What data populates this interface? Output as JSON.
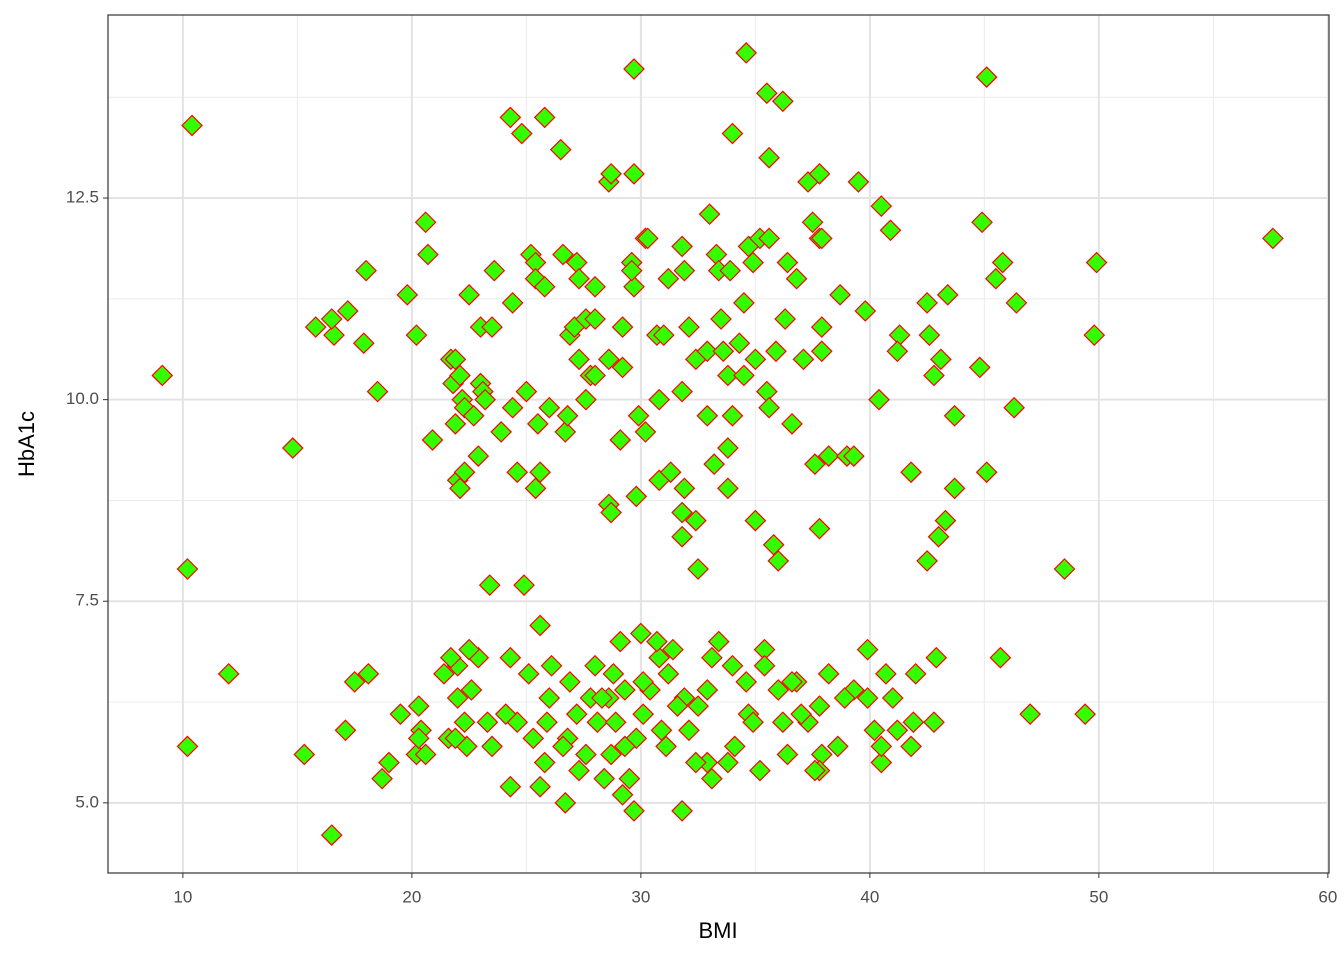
{
  "chart_data": {
    "type": "scatter",
    "xlabel": "BMI",
    "ylabel": "HbA1c",
    "xlim": [
      6.73,
      60.05
    ],
    "ylim": [
      4.13,
      14.77
    ],
    "xticks": [
      10,
      20,
      30,
      40,
      50,
      60
    ],
    "yticks": [
      {
        "value": 5,
        "label": "5.0"
      },
      7.5,
      {
        "value": 10,
        "label": "10.0"
      },
      12.5
    ],
    "grid": true,
    "color": "#33ff00",
    "edge_color": "#ff0000",
    "x": [
      10.4,
      9.1,
      10.2,
      10.2,
      12.0,
      14.8,
      15.3,
      16.5,
      15.8,
      16.6,
      16.5,
      17.2,
      17.9,
      18.0,
      18.5,
      17.5,
      18.1,
      17.1,
      18.7,
      19.0,
      19.5,
      19.8,
      20.2,
      20.6,
      20.7,
      20.9,
      20.3,
      20.2,
      20.6,
      20.4,
      20.3,
      21.7,
      21.9,
      21.8,
      22.1,
      21.9,
      22.2,
      22.3,
      22.0,
      22.1,
      22.3,
      22.5,
      22.7,
      23.0,
      23.1,
      23.2,
      22.9,
      23.0,
      23.5,
      23.6,
      23.4,
      23.9,
      24.3,
      24.8,
      24.4,
      24.4,
      24.6,
      24.9,
      25.0,
      25.2,
      25.4,
      25.4,
      25.5,
      25.6,
      25.4,
      25.8,
      25.8,
      26.0,
      25.6,
      26.5,
      26.6,
      26.7,
      26.8,
      26.9,
      27.1,
      27.2,
      27.3,
      27.3,
      27.6,
      27.6,
      27.8,
      28.0,
      28.0,
      28.0,
      28.6,
      28.7,
      28.6,
      28.7,
      28.6,
      29.2,
      29.2,
      29.1,
      29.7,
      29.7,
      29.6,
      29.7,
      29.6,
      29.9,
      29.8,
      30.2,
      30.3,
      30.2,
      30.7,
      31.0,
      30.8,
      30.8,
      31.2,
      31.3,
      31.8,
      31.9,
      31.8,
      32.1,
      31.9,
      31.8,
      31.8,
      32.4,
      32.4,
      32.5,
      33.0,
      32.9,
      32.9,
      33.2,
      33.3,
      33.4,
      33.5,
      33.6,
      33.8,
      33.8,
      33.9,
      33.8,
      34.0,
      34.0,
      34.3,
      34.5,
      34.5,
      34.6,
      34.7,
      34.9,
      35.0,
      35.0,
      35.2,
      35.6,
      35.6,
      35.5,
      35.5,
      35.6,
      35.8,
      36.0,
      36.2,
      35.9,
      36.3,
      36.4,
      36.6,
      36.8,
      37.3,
      37.5,
      37.8,
      37.8,
      37.9,
      37.1,
      37.6,
      37.8,
      37.9,
      37.9,
      38.2,
      38.7,
      39.0,
      39.3,
      39.5,
      39.8,
      40.4,
      40.5,
      40.9,
      41.3,
      41.2,
      41.8,
      42.5,
      42.6,
      42.5,
      42.8,
      43.0,
      43.1,
      43.3,
      43.4,
      43.7,
      43.7,
      44.8,
      44.9,
      45.1,
      45.1,
      45.5,
      45.8,
      46.3,
      46.4,
      48.5,
      49.9,
      49.8,
      57.6,
      45.7,
      47.0,
      49.4,
      42.9,
      42.8,
      42.0,
      41.8,
      41.9,
      41.2,
      41.0,
      40.7,
      40.5,
      40.5,
      40.2,
      39.9,
      39.9,
      39.3,
      38.9,
      38.6,
      38.2,
      37.9,
      37.8,
      37.8,
      37.6,
      37.3,
      37.0,
      36.8,
      36.6,
      36.4,
      36.0,
      36.2,
      35.4,
      35.4,
      35.2,
      34.7,
      34.9,
      34.6,
      34.1,
      34.0,
      33.8,
      33.4,
      33.1,
      32.9,
      33.1,
      32.9,
      32.5,
      32.4,
      32.1,
      31.9,
      31.8,
      31.4,
      31.2,
      31.1,
      30.8,
      30.7,
      30.4,
      30.1,
      30.0,
      29.8,
      29.7,
      29.5,
      29.3,
      29.3,
      29.1,
      29.2,
      28.8,
      28.6,
      28.7,
      28.4,
      28.1,
      28.0,
      27.8,
      27.6,
      27.3,
      27.2,
      26.9,
      26.8,
      26.6,
      26.7,
      26.1,
      26.0,
      25.9,
      25.8,
      25.6,
      25.1,
      25.3,
      24.6,
      24.3,
      24.3,
      24.1,
      23.5,
      23.3,
      22.9,
      22.6,
      22.5,
      22.4,
      22.3,
      22.0,
      22.0,
      21.7,
      21.6,
      21.4,
      21.9,
      28.3,
      30.1,
      30.9,
      31.6,
      28.9
    ],
    "values": [
      13.4,
      10.3,
      7.9,
      5.7,
      6.6,
      9.4,
      5.6,
      4.6,
      10.9,
      10.8,
      11.0,
      11.1,
      10.7,
      11.6,
      10.1,
      6.5,
      6.6,
      5.9,
      5.3,
      5.5,
      6.1,
      11.3,
      10.8,
      12.2,
      11.8,
      9.5,
      6.2,
      5.6,
      5.6,
      5.9,
      5.8,
      10.5,
      10.5,
      10.2,
      10.3,
      9.7,
      10.0,
      9.9,
      9.0,
      8.9,
      9.1,
      11.3,
      9.8,
      10.2,
      10.1,
      10.0,
      9.3,
      10.9,
      10.9,
      11.6,
      7.7,
      9.6,
      13.5,
      13.3,
      11.2,
      9.9,
      9.1,
      7.7,
      10.1,
      11.8,
      11.7,
      11.5,
      9.7,
      9.1,
      8.9,
      13.5,
      11.4,
      9.9,
      7.2,
      13.1,
      11.8,
      9.6,
      9.8,
      10.8,
      10.9,
      11.7,
      11.5,
      10.5,
      11.0,
      10.0,
      10.3,
      10.3,
      11.4,
      11.0,
      8.7,
      8.6,
      12.7,
      12.8,
      10.5,
      10.4,
      10.9,
      9.5,
      14.1,
      12.8,
      11.7,
      11.4,
      11.6,
      9.8,
      8.8,
      12.0,
      12.0,
      9.6,
      10.8,
      10.8,
      10.0,
      9.0,
      11.5,
      9.1,
      11.9,
      11.6,
      10.1,
      10.9,
      8.9,
      8.6,
      8.3,
      8.5,
      10.5,
      7.9,
      12.3,
      10.6,
      9.8,
      9.2,
      11.8,
      11.6,
      11.0,
      10.6,
      9.4,
      8.9,
      11.6,
      10.3,
      9.8,
      13.3,
      10.7,
      11.2,
      10.3,
      14.3,
      11.9,
      11.7,
      10.5,
      8.5,
      12.0,
      13.0,
      12.0,
      13.8,
      10.1,
      9.9,
      8.2,
      8.0,
      13.7,
      10.6,
      11.0,
      11.7,
      9.7,
      11.5,
      12.7,
      12.2,
      12.0,
      12.8,
      12.0,
      10.5,
      9.2,
      8.4,
      10.9,
      10.6,
      9.3,
      11.3,
      9.3,
      9.3,
      12.7,
      11.1,
      10.0,
      12.4,
      12.1,
      10.8,
      10.6,
      9.1,
      11.2,
      10.8,
      8.0,
      10.3,
      8.3,
      10.5,
      8.5,
      11.3,
      9.8,
      8.9,
      10.4,
      12.2,
      14.0,
      9.1,
      11.5,
      11.7,
      9.9,
      11.2,
      7.9,
      11.7,
      10.8,
      12.0,
      6.8,
      6.1,
      6.1,
      6.8,
      6.0,
      6.6,
      5.7,
      6.0,
      5.9,
      6.3,
      6.6,
      5.5,
      5.7,
      5.9,
      6.9,
      6.3,
      6.4,
      6.3,
      5.7,
      6.6,
      5.6,
      5.4,
      6.2,
      5.4,
      6.0,
      6.1,
      6.5,
      6.5,
      5.6,
      6.4,
      6.0,
      6.9,
      6.7,
      5.4,
      6.1,
      6.0,
      6.5,
      5.7,
      6.7,
      5.5,
      7.0,
      6.8,
      6.4,
      5.3,
      5.5,
      6.2,
      5.5,
      5.9,
      6.3,
      4.9,
      6.9,
      6.6,
      5.7,
      6.8,
      7.0,
      6.4,
      6.1,
      7.1,
      5.8,
      4.9,
      5.3,
      6.4,
      5.7,
      7.0,
      5.1,
      6.6,
      6.3,
      5.6,
      5.3,
      6.0,
      6.7,
      6.3,
      5.6,
      5.4,
      6.1,
      6.5,
      5.8,
      5.7,
      5.0,
      6.7,
      6.3,
      6.0,
      5.5,
      5.2,
      6.6,
      5.8,
      6.0,
      6.8,
      5.2,
      6.1,
      5.7,
      6.0,
      6.8,
      6.4,
      6.9,
      5.7,
      6.0,
      6.3,
      6.7,
      6.8,
      5.8,
      6.6,
      5.8,
      6.3,
      6.5,
      5.9,
      6.2,
      6.0
    ]
  }
}
